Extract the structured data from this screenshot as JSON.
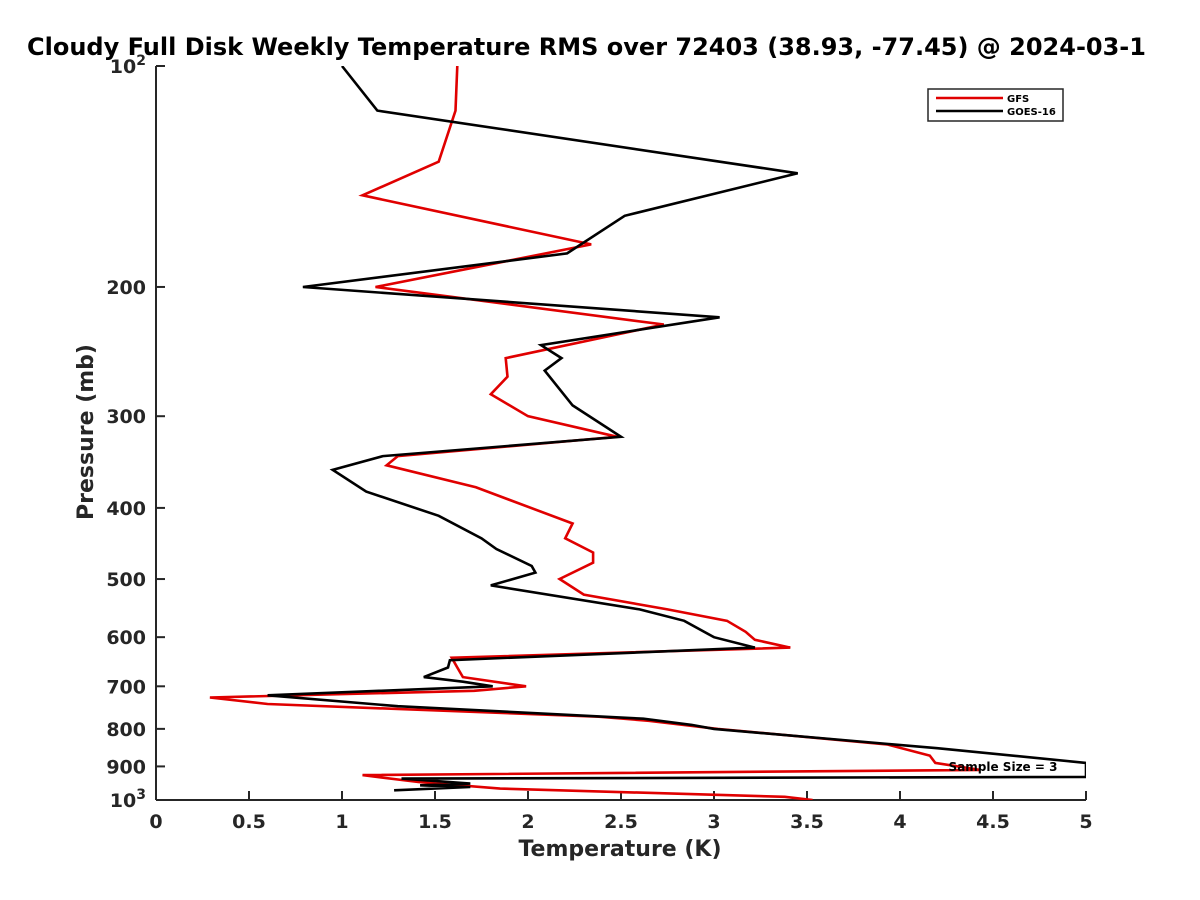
{
  "chart_data": {
    "type": "line",
    "title": "Cloudy Full Disk Weekly Temperature RMS over 72403 (38.93, -77.45) @ 2024-03-1",
    "xlabel": "Temperature (K)",
    "ylabel": "Pressure (mb)",
    "xlim": [
      0,
      5
    ],
    "ylim": [
      100,
      1000
    ],
    "y_scale": "log",
    "y_reversed": true,
    "grid": false,
    "legend_position": "top-right",
    "x_ticks": [
      0,
      0.5,
      1,
      1.5,
      2,
      2.5,
      3,
      3.5,
      4,
      4.5,
      5
    ],
    "x_tick_labels": [
      "0",
      "0.5",
      "1",
      "1.5",
      "2",
      "2.5",
      "3",
      "3.5",
      "4",
      "4.5",
      "5"
    ],
    "y_ticks": [
      100,
      200,
      300,
      400,
      500,
      600,
      700,
      800,
      900,
      1000
    ],
    "y_tick_labels": [
      {
        "base": "10",
        "exp": "2"
      },
      {
        "base": "200",
        "exp": ""
      },
      {
        "base": "300",
        "exp": ""
      },
      {
        "base": "400",
        "exp": ""
      },
      {
        "base": "500",
        "exp": ""
      },
      {
        "base": "600",
        "exp": ""
      },
      {
        "base": "700",
        "exp": ""
      },
      {
        "base": "800",
        "exp": ""
      },
      {
        "base": "900",
        "exp": ""
      },
      {
        "base": "10",
        "exp": "3"
      }
    ],
    "annotation": "Sample Size = 3",
    "series": [
      {
        "name": "GFS",
        "color": "#e00000",
        "points": [
          [
            1.62,
            100
          ],
          [
            1.61,
            115
          ],
          [
            1.52,
            135
          ],
          [
            1.11,
            150
          ],
          [
            2.34,
            175
          ],
          [
            1.18,
            200
          ],
          [
            2.73,
            225
          ],
          [
            1.88,
            250
          ],
          [
            1.89,
            265
          ],
          [
            1.8,
            280
          ],
          [
            2.0,
            300
          ],
          [
            2.48,
            320
          ],
          [
            1.3,
            340
          ],
          [
            1.24,
            350
          ],
          [
            1.72,
            375
          ],
          [
            2.24,
            420
          ],
          [
            2.2,
            440
          ],
          [
            2.35,
            460
          ],
          [
            2.35,
            475
          ],
          [
            2.17,
            500
          ],
          [
            2.3,
            525
          ],
          [
            2.75,
            550
          ],
          [
            3.07,
            570
          ],
          [
            3.17,
            590
          ],
          [
            3.22,
            605
          ],
          [
            3.41,
            620
          ],
          [
            1.59,
            640
          ],
          [
            1.62,
            660
          ],
          [
            1.65,
            680
          ],
          [
            1.99,
            700
          ],
          [
            1.71,
            710
          ],
          [
            0.29,
            725
          ],
          [
            0.6,
            740
          ],
          [
            2.38,
            770
          ],
          [
            2.65,
            780
          ],
          [
            3.02,
            800
          ],
          [
            3.93,
            840
          ],
          [
            4.16,
            870
          ],
          [
            4.19,
            890
          ],
          [
            4.43,
            910
          ],
          [
            1.11,
            925
          ],
          [
            1.41,
            945
          ],
          [
            1.85,
            965
          ],
          [
            3.38,
            990
          ],
          [
            3.53,
            1000
          ]
        ]
      },
      {
        "name": "GOES-16",
        "color": "#000000",
        "points": [
          [
            1.0,
            100
          ],
          [
            1.19,
            115
          ],
          [
            3.45,
            140
          ],
          [
            2.52,
            160
          ],
          [
            2.21,
            180
          ],
          [
            0.79,
            200
          ],
          [
            3.03,
            220
          ],
          [
            2.07,
            240
          ],
          [
            2.18,
            250
          ],
          [
            2.09,
            260
          ],
          [
            2.24,
            290
          ],
          [
            2.5,
            320
          ],
          [
            1.22,
            340
          ],
          [
            0.95,
            355
          ],
          [
            1.13,
            380
          ],
          [
            1.52,
            410
          ],
          [
            1.75,
            440
          ],
          [
            1.83,
            455
          ],
          [
            2.02,
            480
          ],
          [
            2.04,
            490
          ],
          [
            1.8,
            510
          ],
          [
            2.6,
            550
          ],
          [
            2.84,
            570
          ],
          [
            3.0,
            600
          ],
          [
            3.22,
            620
          ],
          [
            1.58,
            645
          ],
          [
            1.57,
            660
          ],
          [
            1.44,
            680
          ],
          [
            1.65,
            690
          ],
          [
            1.81,
            700
          ],
          [
            0.6,
            720
          ],
          [
            1.3,
            745
          ],
          [
            2.62,
            775
          ],
          [
            2.88,
            790
          ],
          [
            3.0,
            800
          ],
          [
            4.2,
            850
          ],
          [
            5.0,
            890
          ],
          [
            5.0,
            930
          ],
          [
            1.32,
            935
          ],
          [
            1.69,
            950
          ],
          [
            1.42,
            955
          ],
          [
            1.69,
            960
          ],
          [
            1.28,
            970
          ]
        ]
      }
    ]
  }
}
